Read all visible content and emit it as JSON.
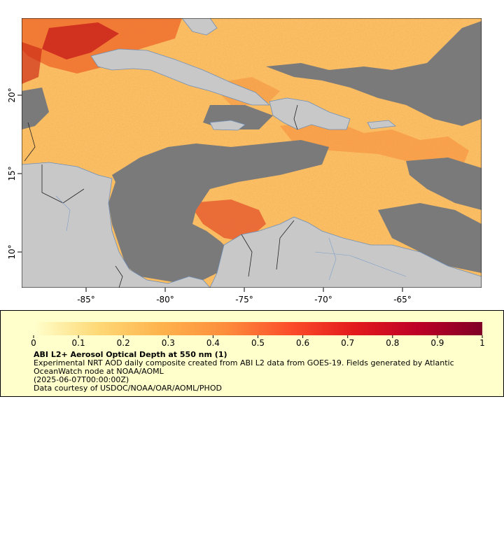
{
  "map": {
    "lat_ticks": [
      "10°",
      "15°",
      "20°"
    ],
    "lon_ticks": [
      "-85°",
      "-80°",
      "-75°",
      "-70°",
      "-65°"
    ],
    "colors": {
      "ocean_no_data": "#7a7a7a",
      "land": "#c8c8c8",
      "coastline": "#6f8fb8",
      "border": "#222222",
      "aod_low": "#ffe7a8",
      "aod_mid": "#f7a53a",
      "aod_high": "#c61a1a"
    }
  },
  "colorbar": {
    "labels": [
      "0",
      "0.1",
      "0.2",
      "0.3",
      "0.4",
      "0.5",
      "0.6",
      "0.7",
      "0.8",
      "0.9",
      "1"
    ],
    "stops": [
      "#ffffcc",
      "#fed976",
      "#feb24c",
      "#fd8d3c",
      "#fc4e2a",
      "#e31a1c",
      "#bd0026",
      "#800026"
    ]
  },
  "legend": {
    "title": "ABI L2+ Aerosol Optical Depth at 550 nm (1)",
    "line1": "Experimental NRT AOD daily composite created from ABI L2 data from GOES-19. Fields generated by Atlantic OceanWatch node at NOAA/AOML",
    "line2": "(2025-06-07T00:00:00Z)",
    "line3": "Data courtesy of USDOC/NOAA/OAR/AOML/PHOD"
  }
}
